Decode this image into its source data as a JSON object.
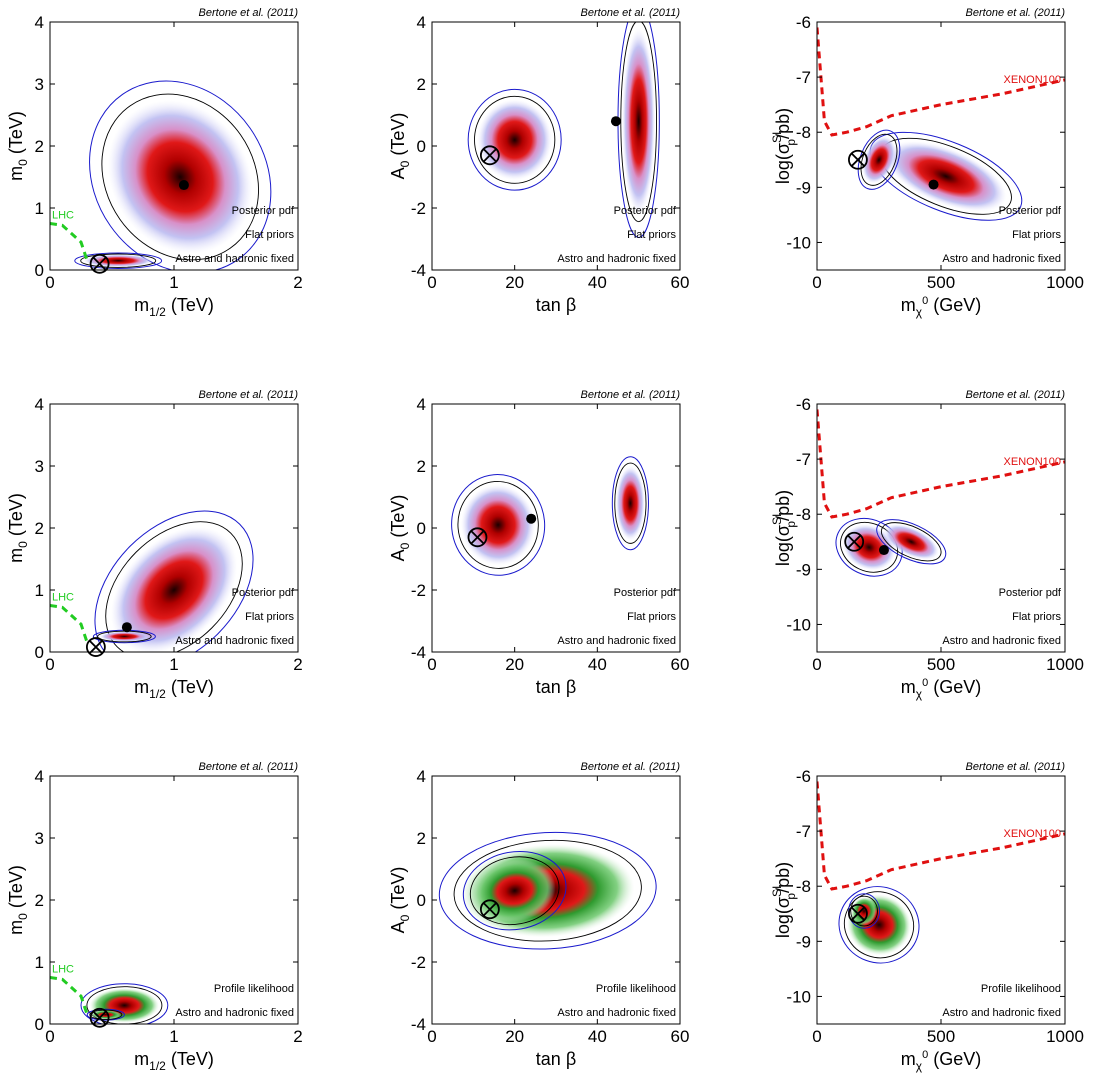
{
  "figure": {
    "credit": "Bertone et al. (2011)",
    "colors": {
      "posterior_core": "#cc0000",
      "posterior_halo": "#b8b8f0",
      "profile_halo": "#3aa83a",
      "contour_outer": "#1a1acc",
      "contour_inner": "#000000",
      "lhc_limit": "#22cc22",
      "xenon_limit": "#e01010"
    }
  },
  "rows": [
    {
      "row": "posterior-flat",
      "notes": [
        "Posterior pdf",
        "Flat priors",
        "Astro and hadronic fixed"
      ],
      "halo": "posterior"
    },
    {
      "row": "posterior-log",
      "notes": [
        "Posterior pdf",
        "Flat priors",
        "Astro and hadronic fixed"
      ],
      "halo": "posterior"
    },
    {
      "row": "profile-likelihood",
      "notes": [
        "Profile likelihood",
        "Astro and hadronic fixed"
      ],
      "halo": "profile"
    }
  ],
  "chart_data": [
    {
      "type": "heatmap",
      "panel": "m12-m0",
      "row": 0,
      "xlabel": "m",
      "xlabel_sub": "1/2",
      "xlabel_unit": " (TeV)",
      "ylabel": "m",
      "ylabel_sub": "0",
      "ylabel_unit": " (TeV)",
      "xlim": [
        0,
        2
      ],
      "ylim": [
        0,
        4
      ],
      "xticks": [
        0,
        1,
        2
      ],
      "yticks": [
        0,
        1,
        2,
        3,
        4
      ],
      "limit": {
        "name": "LHC",
        "points": [
          [
            0,
            0.75
          ],
          [
            0.1,
            0.72
          ],
          [
            0.25,
            0.45
          ],
          [
            0.3,
            0.15
          ]
        ]
      },
      "best_fit": [
        0.4,
        0.1
      ],
      "posterior_mean": [
        1.08,
        1.37
      ],
      "blobs": [
        {
          "cx": 1.05,
          "cy": 1.5,
          "rx": 0.55,
          "ry": 1.3,
          "rot": -35
        },
        {
          "cx": 0.55,
          "cy": 0.15,
          "rx": 0.28,
          "ry": 0.1,
          "rot": 0
        }
      ]
    },
    {
      "type": "heatmap",
      "panel": "tanb-A0",
      "row": 0,
      "xlabel": "tan β",
      "ylabel": "A",
      "ylabel_sub": "0",
      "ylabel_unit": " (TeV)",
      "xlim": [
        0,
        60
      ],
      "ylim": [
        -4,
        4
      ],
      "xticks": [
        0,
        20,
        40,
        60
      ],
      "yticks": [
        -4,
        -2,
        0,
        2,
        4
      ],
      "best_fit": [
        14,
        -0.3
      ],
      "posterior_mean": [
        44.5,
        0.8
      ],
      "blobs": [
        {
          "cx": 50,
          "cy": 0.8,
          "rx": 4,
          "ry": 3,
          "rot": 0
        },
        {
          "cx": 20,
          "cy": 0.2,
          "rx": 9,
          "ry": 1.3,
          "rot": 0
        }
      ]
    },
    {
      "type": "heatmap",
      "panel": "mchi-sigma",
      "row": 0,
      "xlabel": "m",
      "xlabel_sub": "χ",
      "xlabel_sup": "0",
      "xlabel_unit": " (GeV)",
      "ylabel": "log(σ",
      "ylabel_sub": "p",
      "ylabel_sup": "SI",
      "ylabel_unit": "/pb)",
      "xlim": [
        0,
        1000
      ],
      "ylim": [
        -10.5,
        -6
      ],
      "xticks": [
        0,
        500,
        1000
      ],
      "yticks": [
        -10,
        -9,
        -8,
        -7,
        -6
      ],
      "limit": {
        "name": "XENON100",
        "points": [
          [
            0,
            -6.1
          ],
          [
            30,
            -7.8
          ],
          [
            60,
            -8.05
          ],
          [
            120,
            -8.0
          ],
          [
            200,
            -7.9
          ],
          [
            300,
            -7.7
          ],
          [
            500,
            -7.5
          ],
          [
            750,
            -7.3
          ],
          [
            1000,
            -7.05
          ]
        ]
      },
      "best_fit": [
        165,
        -8.5
      ],
      "posterior_mean": [
        470,
        -8.95
      ],
      "blobs": [
        {
          "cx": 520,
          "cy": -8.8,
          "rx": 260,
          "ry": 0.5,
          "rot": 22
        },
        {
          "cx": 250,
          "cy": -8.5,
          "rx": 60,
          "ry": 0.45,
          "rot": 22
        }
      ]
    },
    {
      "type": "heatmap",
      "panel": "m12-m0",
      "row": 1,
      "xlabel": "m",
      "xlabel_sub": "1/2",
      "xlabel_unit": " (TeV)",
      "ylabel": "m",
      "ylabel_sub": "0",
      "ylabel_unit": " (TeV)",
      "xlim": [
        0,
        2
      ],
      "ylim": [
        0,
        4
      ],
      "xticks": [
        0,
        1,
        2
      ],
      "yticks": [
        0,
        1,
        2,
        3,
        4
      ],
      "limit": {
        "name": "LHC",
        "points": [
          [
            0,
            0.75
          ],
          [
            0.1,
            0.72
          ],
          [
            0.25,
            0.45
          ],
          [
            0.3,
            0.15
          ]
        ]
      },
      "best_fit": [
        0.37,
        0.08
      ],
      "posterior_mean": [
        0.62,
        0.4
      ],
      "blobs": [
        {
          "cx": 1.0,
          "cy": 1.0,
          "rx": 0.6,
          "ry": 0.8,
          "rot": -45
        },
        {
          "cx": 0.6,
          "cy": 0.25,
          "rx": 0.2,
          "ry": 0.08,
          "rot": 0
        }
      ]
    },
    {
      "type": "heatmap",
      "panel": "tanb-A0",
      "row": 1,
      "xlabel": "tan β",
      "ylabel": "A",
      "ylabel_sub": "0",
      "ylabel_unit": " (TeV)",
      "xlim": [
        0,
        60
      ],
      "ylim": [
        -4,
        4
      ],
      "xticks": [
        0,
        20,
        40,
        60
      ],
      "yticks": [
        -4,
        -2,
        0,
        2,
        4
      ],
      "best_fit": [
        11,
        -0.3
      ],
      "posterior_mean": [
        24,
        0.3
      ],
      "blobs": [
        {
          "cx": 16,
          "cy": 0.1,
          "rx": 9,
          "ry": 1.3,
          "rot": -5
        },
        {
          "cx": 48,
          "cy": 0.8,
          "rx": 3.5,
          "ry": 1.2,
          "rot": 0
        }
      ]
    },
    {
      "type": "heatmap",
      "panel": "mchi-sigma",
      "row": 1,
      "xlabel": "m",
      "xlabel_sub": "χ",
      "xlabel_sup": "0",
      "xlabel_unit": " (GeV)",
      "ylabel": "log(σ",
      "ylabel_sub": "p",
      "ylabel_sup": "SI",
      "ylabel_unit": "/pb)",
      "xlim": [
        0,
        1000
      ],
      "ylim": [
        -10.5,
        -6
      ],
      "xticks": [
        0,
        500,
        1000
      ],
      "yticks": [
        -10,
        -9,
        -8,
        -7,
        -6
      ],
      "limit": {
        "name": "XENON100",
        "points": [
          [
            0,
            -6.1
          ],
          [
            30,
            -7.8
          ],
          [
            60,
            -8.05
          ],
          [
            120,
            -8.0
          ],
          [
            200,
            -7.9
          ],
          [
            300,
            -7.7
          ],
          [
            500,
            -7.5
          ],
          [
            750,
            -7.3
          ],
          [
            1000,
            -7.05
          ]
        ]
      },
      "best_fit": [
        150,
        -8.5
      ],
      "posterior_mean": [
        270,
        -8.65
      ],
      "blobs": [
        {
          "cx": 210,
          "cy": -8.6,
          "rx": 110,
          "ry": 0.4,
          "rot": 25
        },
        {
          "cx": 380,
          "cy": -8.5,
          "rx": 120,
          "ry": 0.25,
          "rot": 25
        }
      ]
    },
    {
      "type": "heatmap",
      "panel": "m12-m0",
      "row": 2,
      "xlabel": "m",
      "xlabel_sub": "1/2",
      "xlabel_unit": " (TeV)",
      "ylabel": "m",
      "ylabel_sub": "0",
      "ylabel_unit": " (TeV)",
      "xlim": [
        0,
        2
      ],
      "ylim": [
        0,
        4
      ],
      "xticks": [
        0,
        1,
        2
      ],
      "yticks": [
        0,
        1,
        2,
        3,
        4
      ],
      "limit": {
        "name": "LHC",
        "points": [
          [
            0,
            0.75
          ],
          [
            0.1,
            0.72
          ],
          [
            0.25,
            0.45
          ],
          [
            0.3,
            0.15
          ]
        ]
      },
      "best_fit": [
        0.4,
        0.1
      ],
      "blobs": [
        {
          "cx": 0.6,
          "cy": 0.3,
          "rx": 0.28,
          "ry": 0.28,
          "rot": 0
        },
        {
          "cx": 0.45,
          "cy": 0.15,
          "rx": 0.12,
          "ry": 0.07,
          "rot": 0
        }
      ]
    },
    {
      "type": "heatmap",
      "panel": "tanb-A0",
      "row": 2,
      "xlabel": "tan β",
      "ylabel": "A",
      "ylabel_sub": "0",
      "ylabel_unit": " (TeV)",
      "xlim": [
        0,
        60
      ],
      "ylim": [
        -4,
        4
      ],
      "xticks": [
        0,
        20,
        40,
        60
      ],
      "yticks": [
        -4,
        -2,
        0,
        2,
        4
      ],
      "best_fit": [
        14,
        -0.3
      ],
      "blobs": [
        {
          "cx": 28,
          "cy": 0.3,
          "rx": 21,
          "ry": 1.5,
          "rot": -3
        },
        {
          "cx": 20,
          "cy": 0.3,
          "rx": 10,
          "ry": 1.0,
          "rot": -10
        }
      ]
    },
    {
      "type": "heatmap",
      "panel": "mchi-sigma",
      "row": 2,
      "xlabel": "m",
      "xlabel_sub": "χ",
      "xlabel_sup": "0",
      "xlabel_unit": " (GeV)",
      "ylabel": "log(σ",
      "ylabel_sub": "p",
      "ylabel_sup": "SI",
      "ylabel_unit": "/pb)",
      "xlim": [
        0,
        1000
      ],
      "ylim": [
        -10.5,
        -6
      ],
      "xticks": [
        0,
        500,
        1000
      ],
      "yticks": [
        -10,
        -9,
        -8,
        -7,
        -6
      ],
      "limit": {
        "name": "XENON100",
        "points": [
          [
            0,
            -6.1
          ],
          [
            30,
            -7.8
          ],
          [
            60,
            -8.05
          ],
          [
            120,
            -8.0
          ],
          [
            200,
            -7.9
          ],
          [
            300,
            -7.7
          ],
          [
            500,
            -7.5
          ],
          [
            750,
            -7.3
          ],
          [
            1000,
            -7.05
          ]
        ]
      },
      "best_fit": [
        165,
        -8.5
      ],
      "blobs": [
        {
          "cx": 250,
          "cy": -8.7,
          "rx": 130,
          "ry": 0.55,
          "rot": 20
        },
        {
          "cx": 190,
          "cy": -8.45,
          "rx": 50,
          "ry": 0.25,
          "rot": 0
        }
      ]
    }
  ]
}
